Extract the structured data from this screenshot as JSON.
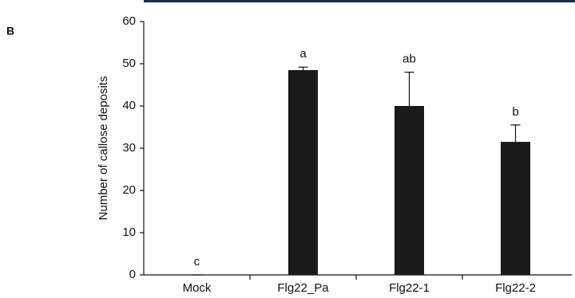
{
  "panel_label": "B",
  "chart_data": {
    "type": "bar",
    "ylabel": "Number of callose deposits",
    "categories": [
      "Mock",
      "Flg22_Pa",
      "Flg22-1",
      "Flg22-2"
    ],
    "values": [
      0,
      48.5,
      40,
      31.5
    ],
    "errors": [
      0,
      0.7,
      8,
      4
    ],
    "annotations": [
      "c",
      "a",
      "ab",
      "b"
    ],
    "color": "#1a1a1a",
    "ylim": [
      0,
      60
    ],
    "yticks": [
      0,
      10,
      20,
      30,
      40,
      50,
      60
    ]
  }
}
